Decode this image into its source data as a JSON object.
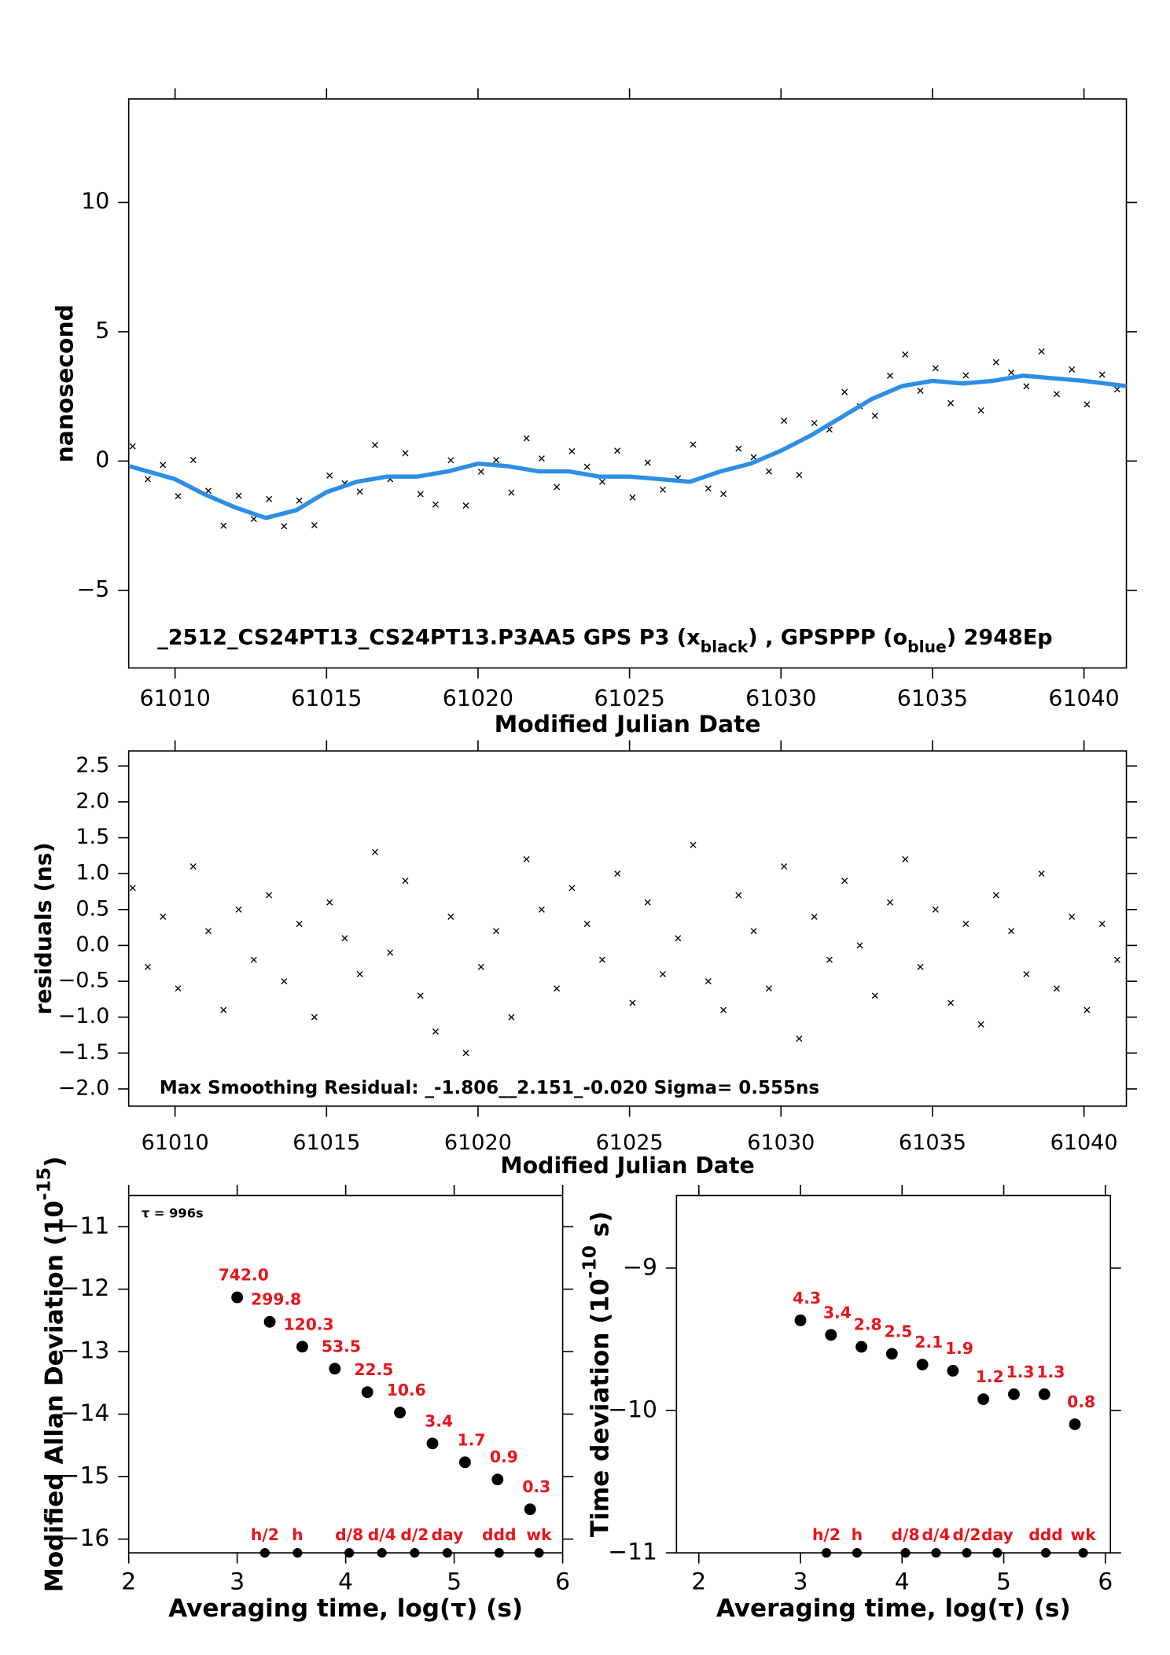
{
  "chart_data": [
    {
      "type": "scatter",
      "ylabel": "nanosecond",
      "xlabel": "Modified Julian Date",
      "annotation": [
        "_2512_CS24PT13_CS24PT13.P3AA5     GPS P3 (x",
        "black",
        ") ,  GPSPPP (o",
        "blue",
        ")  2948Ep"
      ],
      "xlim": [
        61008.47,
        61041.4
      ],
      "xticks": [
        61010,
        61015,
        61020,
        61025,
        61030,
        61035,
        61040
      ],
      "ylim": [
        -8,
        14
      ],
      "yticks": [
        {
          "value": -5,
          "label": "−5"
        },
        0,
        5,
        10
      ],
      "series": [
        {
          "style": "x",
          "color": "#000000",
          "x": [
            61008.6,
            61009.1,
            61009.6,
            61010.1,
            61010.6,
            61011.1,
            61011.6,
            61012.1,
            61012.6,
            61013.1,
            61013.6,
            61014.1,
            61014.6,
            61015.1,
            61015.6,
            61016.1,
            61016.6,
            61017.1,
            61017.6,
            61018.1,
            61018.6,
            61019.1,
            61019.6,
            61020.1,
            61020.6,
            61021.1,
            61021.6,
            61022.1,
            61022.6,
            61023.1,
            61023.6,
            61024.1,
            61024.6,
            61025.1,
            61025.6,
            61026.1,
            61026.6,
            61027.1,
            61027.6,
            61028.1,
            61028.6,
            61029.1,
            61029.6,
            61030.1,
            61030.6,
            61031.1,
            61031.6,
            61032.1,
            61032.6,
            61033.1,
            61033.6,
            61034.1,
            61034.6,
            61035.1,
            61035.6,
            61036.1,
            61036.6,
            61037.1,
            61037.6,
            61038.1,
            61038.6,
            61039.1,
            61039.6,
            61040.1,
            61040.6,
            61041.1
          ],
          "values": [
            0.57,
            -0.7,
            -0.15,
            -1.36,
            0.04,
            -1.15,
            -2.5,
            -1.34,
            -2.24,
            -1.47,
            -2.52,
            -1.53,
            -2.48,
            -0.56,
            -0.86,
            -1.18,
            0.62,
            -0.7,
            0.3,
            -1.28,
            -1.68,
            0.03,
            -1.72,
            -0.41,
            0.04,
            -1.22,
            0.88,
            0.1,
            -1.0,
            0.38,
            -0.22,
            -0.8,
            0.4,
            -1.41,
            -0.06,
            -1.11,
            -0.66,
            0.64,
            -1.06,
            -1.27,
            0.48,
            0.15,
            -0.4,
            1.56,
            -0.54,
            1.47,
            1.22,
            2.67,
            2.12,
            1.75,
            3.3,
            4.12,
            2.72,
            3.59,
            2.24,
            3.31,
            1.96,
            3.82,
            3.42,
            2.89,
            4.24,
            2.59,
            3.54,
            2.19,
            3.34,
            2.77
          ]
        },
        {
          "style": "line",
          "color": "#2d8ee8",
          "x": [
            61008.5,
            61010,
            61011,
            61012,
            61013,
            61014,
            61015,
            61016,
            61017,
            61018,
            61019,
            61020,
            61021,
            61022,
            61023,
            61024,
            61025,
            61026,
            61027,
            61028,
            61029,
            61030,
            61031,
            61032,
            61033,
            61034,
            61035,
            61036,
            61037,
            61038,
            61039,
            61040,
            61041.4
          ],
          "values": [
            -0.2,
            -0.7,
            -1.3,
            -1.8,
            -2.2,
            -1.9,
            -1.2,
            -0.8,
            -0.6,
            -0.6,
            -0.4,
            -0.1,
            -0.2,
            -0.4,
            -0.4,
            -0.6,
            -0.6,
            -0.7,
            -0.8,
            -0.4,
            -0.1,
            0.4,
            1.0,
            1.7,
            2.4,
            2.9,
            3.1,
            3.0,
            3.1,
            3.3,
            3.2,
            3.1,
            2.9
          ]
        }
      ]
    },
    {
      "type": "scatter",
      "ylabel": "residuals (ns)",
      "xlabel": "Modified Julian Date",
      "annotation": [
        "Max Smoothing Residual: _-1.806__2.151_-0.020  Sigma= 0.555ns"
      ],
      "xlim": [
        61008.47,
        61041.4
      ],
      "xticks": [
        61010,
        61015,
        61020,
        61025,
        61030,
        61035,
        61040
      ],
      "ylim": [
        -2.24,
        2.71
      ],
      "yticks": [
        {
          "value": -2,
          "label": "−2.0"
        },
        {
          "value": -1.5,
          "label": "−1.5"
        },
        {
          "value": -1,
          "label": "−1.0"
        },
        {
          "value": -0.5,
          "label": "−0.5"
        },
        {
          "value": 0,
          "label": "0.0"
        },
        0.5,
        {
          "value": 1,
          "label": "1.0"
        },
        1.5,
        {
          "value": 2,
          "label": "2.0"
        },
        2.5
      ],
      "series": [
        {
          "style": "x",
          "color": "#000000",
          "x": [
            61008.6,
            61009.1,
            61009.6,
            61010.1,
            61010.6,
            61011.1,
            61011.6,
            61012.1,
            61012.6,
            61013.1,
            61013.6,
            61014.1,
            61014.6,
            61015.1,
            61015.6,
            61016.1,
            61016.6,
            61017.1,
            61017.6,
            61018.1,
            61018.6,
            61019.1,
            61019.6,
            61020.1,
            61020.6,
            61021.1,
            61021.6,
            61022.1,
            61022.6,
            61023.1,
            61023.6,
            61024.1,
            61024.6,
            61025.1,
            61025.6,
            61026.1,
            61026.6,
            61027.1,
            61027.6,
            61028.1,
            61028.6,
            61029.1,
            61029.6,
            61030.1,
            61030.6,
            61031.1,
            61031.6,
            61032.1,
            61032.6,
            61033.1,
            61033.6,
            61034.1,
            61034.6,
            61035.1,
            61035.6,
            61036.1,
            61036.6,
            61037.1,
            61037.6,
            61038.1,
            61038.6,
            61039.1,
            61039.6,
            61040.1,
            61040.6,
            61041.1
          ],
          "values": [
            0.8,
            -0.3,
            0.4,
            -0.6,
            1.1,
            0.2,
            -0.9,
            0.5,
            -0.2,
            0.7,
            -0.5,
            0.3,
            -1.0,
            0.6,
            0.1,
            -0.4,
            1.3,
            -0.1,
            0.9,
            -0.7,
            -1.2,
            0.4,
            -1.5,
            -0.3,
            0.2,
            -1.0,
            1.2,
            0.5,
            -0.6,
            0.8,
            0.3,
            -0.2,
            1.0,
            -0.8,
            0.6,
            -0.4,
            0.1,
            1.4,
            -0.5,
            -0.9,
            0.7,
            0.2,
            -0.6,
            1.1,
            -1.3,
            0.4,
            -0.2,
            0.9,
            0.0,
            -0.7,
            0.6,
            1.2,
            -0.3,
            0.5,
            -0.8,
            0.3,
            -1.1,
            0.7,
            0.2,
            -0.4,
            1.0,
            -0.6,
            0.4,
            -0.9,
            0.3,
            -0.2
          ]
        }
      ]
    },
    {
      "type": "scatter",
      "ylabel": [
        "Modified Allan Deviation (10",
        "-15",
        ")"
      ],
      "xlabel": "Averaging time, log(τ) (s)",
      "annotation": [
        "τ = 996s"
      ],
      "xlim": [
        2,
        6
      ],
      "xticks": [
        2,
        3,
        4,
        5,
        6
      ],
      "ylim": [
        -16.22,
        -10.5
      ],
      "yticks": [
        {
          "value": -16,
          "label": "−16"
        },
        {
          "value": -15,
          "label": "−15"
        },
        {
          "value": -14,
          "label": "−14"
        },
        {
          "value": -13,
          "label": "−13"
        },
        {
          "value": -12,
          "label": "−12"
        },
        {
          "value": -11,
          "label": "−11"
        }
      ],
      "series": [
        {
          "style": "dot",
          "color": "#000000",
          "label_color": "#e8141c",
          "x": [
            3.0,
            3.3,
            3.6,
            3.9,
            4.2,
            4.5,
            4.8,
            5.1,
            5.4,
            5.7
          ],
          "values": [
            -12.13,
            -12.523,
            -12.92,
            -13.272,
            -13.648,
            -13.975,
            -14.469,
            -14.77,
            -15.046,
            -15.523
          ],
          "value_labels": [
            "742.0",
            "299.8",
            "120.3",
            "53.5",
            "22.5",
            "10.6",
            "3.4",
            "1.7",
            "0.9",
            "0.3"
          ]
        }
      ],
      "interval_markers": {
        "color": "#000000",
        "label_color": "#e8141c",
        "x": [
          3.255,
          3.556,
          4.033,
          4.334,
          4.636,
          4.937,
          5.414,
          5.782
        ],
        "labels": [
          "h/2",
          "h",
          "d/8",
          "d/4",
          "d/2",
          "day",
          "ddd",
          "wk"
        ]
      }
    },
    {
      "type": "scatter",
      "ylabel": [
        "Time deviation (10",
        "-10",
        " s)"
      ],
      "xlabel": "Averaging time, log(τ) (s)",
      "xlim": [
        1.78,
        6.05
      ],
      "xticks": [
        2,
        3,
        4,
        5,
        6
      ],
      "ylim": [
        -11,
        -8.49
      ],
      "yticks": [
        {
          "value": -11,
          "label": "−11"
        },
        {
          "value": -10,
          "label": "−10"
        },
        {
          "value": -9,
          "label": "−9"
        }
      ],
      "series": [
        {
          "style": "dot",
          "color": "#000000",
          "label_color": "#e8141c",
          "x": [
            3.0,
            3.3,
            3.6,
            3.9,
            4.2,
            4.5,
            4.8,
            5.1,
            5.4,
            5.7
          ],
          "values": [
            -9.367,
            -9.469,
            -9.553,
            -9.602,
            -9.678,
            -9.721,
            -9.921,
            -9.886,
            -9.886,
            -10.097
          ],
          "value_labels": [
            "4.3",
            "3.4",
            "2.8",
            "2.5",
            "2.1",
            "1.9",
            "1.2",
            "1.3",
            "1.3",
            "0.8"
          ]
        }
      ],
      "interval_markers": {
        "color": "#000000",
        "label_color": "#e8141c",
        "x": [
          3.255,
          3.556,
          4.033,
          4.334,
          4.636,
          4.937,
          5.414,
          5.782
        ],
        "labels": [
          "h/2",
          "h",
          "d/8",
          "d/4",
          "d/2",
          "day",
          "ddd",
          "wk"
        ]
      }
    }
  ]
}
